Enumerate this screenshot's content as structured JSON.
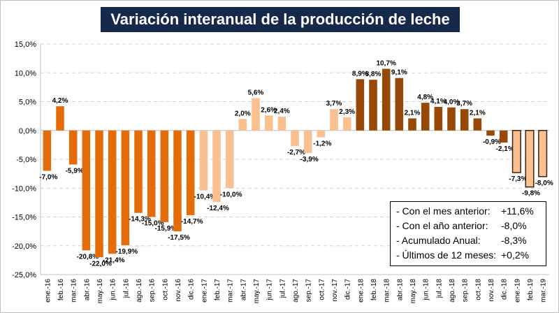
{
  "title": "Variación interanual de la producción de leche",
  "legend_box": [
    {
      "label": "- Con el mes anterior:",
      "value": "+11,6%"
    },
    {
      "label": "- Con el año anterior:",
      "value": "-8,0%"
    },
    {
      "label": "- Acumulado Anual:",
      "value": "-8,3%"
    },
    {
      "label": "- Últimos de 12 meses:",
      "value": "+0,2%"
    }
  ],
  "chart_data": {
    "type": "bar",
    "ylim": [
      -25,
      15
    ],
    "yticks": [
      "-25,0%",
      "-20,0%",
      "-15,0%",
      "-10,0%",
      "-5,0%",
      "0,0%",
      "5,0%",
      "10,0%",
      "15,0%"
    ],
    "grid": true,
    "categories": [
      "ene.-16",
      "feb.-16",
      "mar.-16",
      "abr.-16",
      "may.-16",
      "jun.-16",
      "jul.-16",
      "ago.-16",
      "sep.-16",
      "oct.-16",
      "nov.-16",
      "dic.-16",
      "ene.-17",
      "feb.-17",
      "mar.-17",
      "abr.-17",
      "may.-17",
      "jun.-17",
      "jul.-17",
      "ago.-17",
      "sep.-17",
      "oct.-17",
      "nov.-17",
      "dic.-17",
      "ene.-18",
      "feb.-18",
      "mar.-18",
      "abr.-18",
      "may.-18",
      "jun.-18",
      "jul.-18",
      "ago.-18",
      "sep.-18",
      "oct.-18",
      "nov.-18",
      "dic.-18",
      "ene.-19",
      "feb.-19",
      "mar.-19"
    ],
    "values": [
      -7.0,
      4.2,
      -5.9,
      -20.8,
      -22.0,
      -21.4,
      -19.9,
      -14.3,
      -15.0,
      -15.9,
      -17.5,
      -14.7,
      -10.4,
      -12.4,
      -10.0,
      2.0,
      5.6,
      2.6,
      2.4,
      -2.7,
      -3.9,
      -1.2,
      3.7,
      2.3,
      8.9,
      8.8,
      10.7,
      9.1,
      2.1,
      4.8,
      4.1,
      4.0,
      3.7,
      2.1,
      -0.9,
      -2.1,
      -7.3,
      -9.8,
      -8.0
    ],
    "labels": [
      "-7,0%",
      "4,2%",
      "-5,9%",
      "-20,8%",
      "-22,0%",
      "-21,4%",
      "-19,9%",
      "-14,3%",
      "-15,0%",
      "-15,9%",
      "-17,5%",
      "-14,7%",
      "-10,4%",
      "-12,4%",
      "-10,0%",
      "2,0%",
      "5,6%",
      "2,6%",
      "2,4%",
      "-2,7%",
      "-3,9%",
      "-1,2%",
      "3,7%",
      "2,3%",
      "8,9%",
      "8,8%",
      "10,7%",
      "9,1%",
      "2,1%",
      "4,8%",
      "4,1%",
      "4,0%",
      "3,7%",
      "2,1%",
      "-0,9%",
      "-2,1%",
      "-7,3%",
      "-9,8%",
      "-8,0%"
    ],
    "year_colors": {
      "2016": "#e46c0a",
      "2017": "#fac090",
      "2018": "#984807",
      "2019": "#fac090"
    },
    "highlight_border": "#3b2410"
  }
}
